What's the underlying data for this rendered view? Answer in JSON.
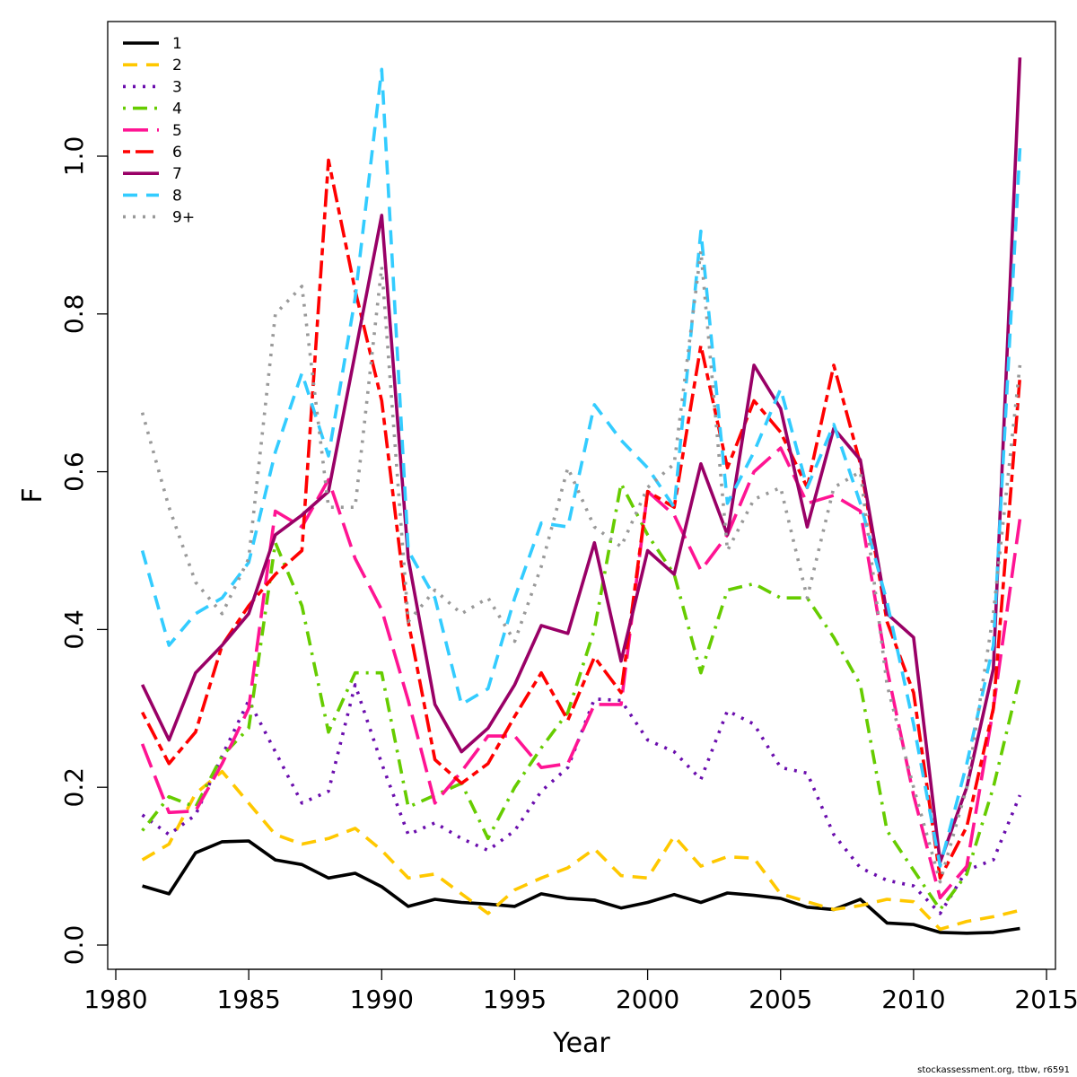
{
  "chart_data": {
    "type": "line",
    "title": "",
    "xlabel": "Year",
    "ylabel": "F",
    "xlim": [
      1980,
      2015
    ],
    "ylim": [
      0,
      1.15
    ],
    "xticks": [
      "1980",
      "1985",
      "1990",
      "1995",
      "2000",
      "2005",
      "2010",
      "2015"
    ],
    "yticks": [
      "0.0",
      "0.2",
      "0.4",
      "0.6",
      "0.8",
      "1.0"
    ],
    "grid": false,
    "legend_position": "top-left",
    "x": [
      1981,
      1982,
      1983,
      1984,
      1985,
      1986,
      1987,
      1988,
      1989,
      1990,
      1991,
      1992,
      1993,
      1994,
      1995,
      1996,
      1997,
      1998,
      1999,
      2000,
      2001,
      2002,
      2003,
      2004,
      2005,
      2006,
      2007,
      2008,
      2009,
      2010,
      2011,
      2012,
      2013,
      2014
    ],
    "series": [
      {
        "name": "1",
        "color": "#000000",
        "dash": "solid",
        "values": [
          0.075,
          0.065,
          0.117,
          0.131,
          0.132,
          0.108,
          0.102,
          0.085,
          0.091,
          0.074,
          0.049,
          0.058,
          0.054,
          0.052,
          0.049,
          0.065,
          0.059,
          0.057,
          0.047,
          0.054,
          0.064,
          0.054,
          0.066,
          0.063,
          0.059,
          0.048,
          0.045,
          0.058,
          0.028,
          0.026,
          0.016,
          0.015,
          0.016,
          0.021
        ]
      },
      {
        "name": "2",
        "color": "#FFC800",
        "dash": "dashed",
        "values": [
          0.108,
          0.128,
          0.192,
          0.22,
          0.18,
          0.14,
          0.128,
          0.135,
          0.148,
          0.12,
          0.085,
          0.09,
          0.065,
          0.04,
          0.07,
          0.085,
          0.098,
          0.122,
          0.088,
          0.085,
          0.138,
          0.1,
          0.112,
          0.11,
          0.065,
          0.055,
          0.045,
          0.05,
          0.058,
          0.055,
          0.02,
          0.03,
          0.036,
          0.044
        ]
      },
      {
        "name": "3",
        "color": "#6A0DAD",
        "dash": "dotted",
        "values": [
          0.165,
          0.14,
          0.165,
          0.24,
          0.31,
          0.245,
          0.18,
          0.195,
          0.33,
          0.23,
          0.14,
          0.155,
          0.135,
          0.12,
          0.145,
          0.195,
          0.225,
          0.312,
          0.31,
          0.26,
          0.245,
          0.21,
          0.297,
          0.28,
          0.225,
          0.218,
          0.14,
          0.098,
          0.082,
          0.075,
          0.04,
          0.095,
          0.108,
          0.19
        ]
      },
      {
        "name": "4",
        "color": "#66CC00",
        "dash": "dotdash",
        "values": [
          0.145,
          0.188,
          0.175,
          0.24,
          0.275,
          0.51,
          0.43,
          0.27,
          0.345,
          0.345,
          0.175,
          0.19,
          0.205,
          0.135,
          0.2,
          0.25,
          0.295,
          0.4,
          0.585,
          0.52,
          0.47,
          0.345,
          0.45,
          0.458,
          0.44,
          0.44,
          0.39,
          0.33,
          0.145,
          0.095,
          0.045,
          0.09,
          0.2,
          0.34
        ]
      },
      {
        "name": "5",
        "color": "#FF1493",
        "dash": "longdash",
        "values": [
          0.255,
          0.168,
          0.17,
          0.23,
          0.3,
          0.55,
          0.53,
          0.59,
          0.49,
          0.425,
          0.31,
          0.18,
          0.22,
          0.265,
          0.265,
          0.225,
          0.23,
          0.305,
          0.305,
          0.575,
          0.545,
          0.475,
          0.52,
          0.6,
          0.63,
          0.56,
          0.57,
          0.55,
          0.35,
          0.19,
          0.06,
          0.1,
          0.3,
          0.54
        ]
      },
      {
        "name": "6",
        "color": "#FF0000",
        "dash": "twodash",
        "values": [
          0.295,
          0.23,
          0.27,
          0.38,
          0.43,
          0.47,
          0.5,
          0.995,
          0.83,
          0.69,
          0.41,
          0.235,
          0.205,
          0.23,
          0.29,
          0.345,
          0.285,
          0.365,
          0.32,
          0.575,
          0.555,
          0.76,
          0.605,
          0.69,
          0.65,
          0.58,
          0.735,
          0.61,
          0.41,
          0.32,
          0.085,
          0.15,
          0.3,
          0.72
        ]
      },
      {
        "name": "7",
        "color": "#990066",
        "dash": "solid",
        "values": [
          0.33,
          0.26,
          0.345,
          0.38,
          0.42,
          0.52,
          0.545,
          0.575,
          0.75,
          0.925,
          0.49,
          0.305,
          0.245,
          0.275,
          0.33,
          0.405,
          0.395,
          0.51,
          0.36,
          0.5,
          0.47,
          0.61,
          0.52,
          0.735,
          0.68,
          0.53,
          0.655,
          0.615,
          0.42,
          0.39,
          0.105,
          0.2,
          0.35,
          1.125
        ]
      },
      {
        "name": "8",
        "color": "#33CCFF",
        "dash": "dashed",
        "values": [
          0.5,
          0.38,
          0.42,
          0.44,
          0.485,
          0.625,
          0.725,
          0.62,
          0.82,
          1.11,
          0.5,
          0.44,
          0.305,
          0.325,
          0.44,
          0.535,
          0.53,
          0.685,
          0.64,
          0.605,
          0.555,
          0.905,
          0.56,
          0.625,
          0.705,
          0.58,
          0.66,
          0.56,
          0.435,
          0.28,
          0.1,
          0.23,
          0.38,
          1.01
        ]
      },
      {
        "name": "9+",
        "color": "#999999",
        "dash": "dotted",
        "values": [
          0.675,
          0.555,
          0.46,
          0.42,
          0.49,
          0.8,
          0.835,
          0.555,
          0.555,
          0.86,
          0.41,
          0.45,
          0.42,
          0.44,
          0.385,
          0.48,
          0.605,
          0.53,
          0.505,
          0.58,
          0.61,
          0.88,
          0.5,
          0.565,
          0.58,
          0.44,
          0.58,
          0.6,
          0.33,
          0.2,
          0.08,
          0.2,
          0.42,
          0.735
        ]
      }
    ]
  },
  "footer": {
    "credit": "stockassessment.org, ttbw, r6591"
  }
}
